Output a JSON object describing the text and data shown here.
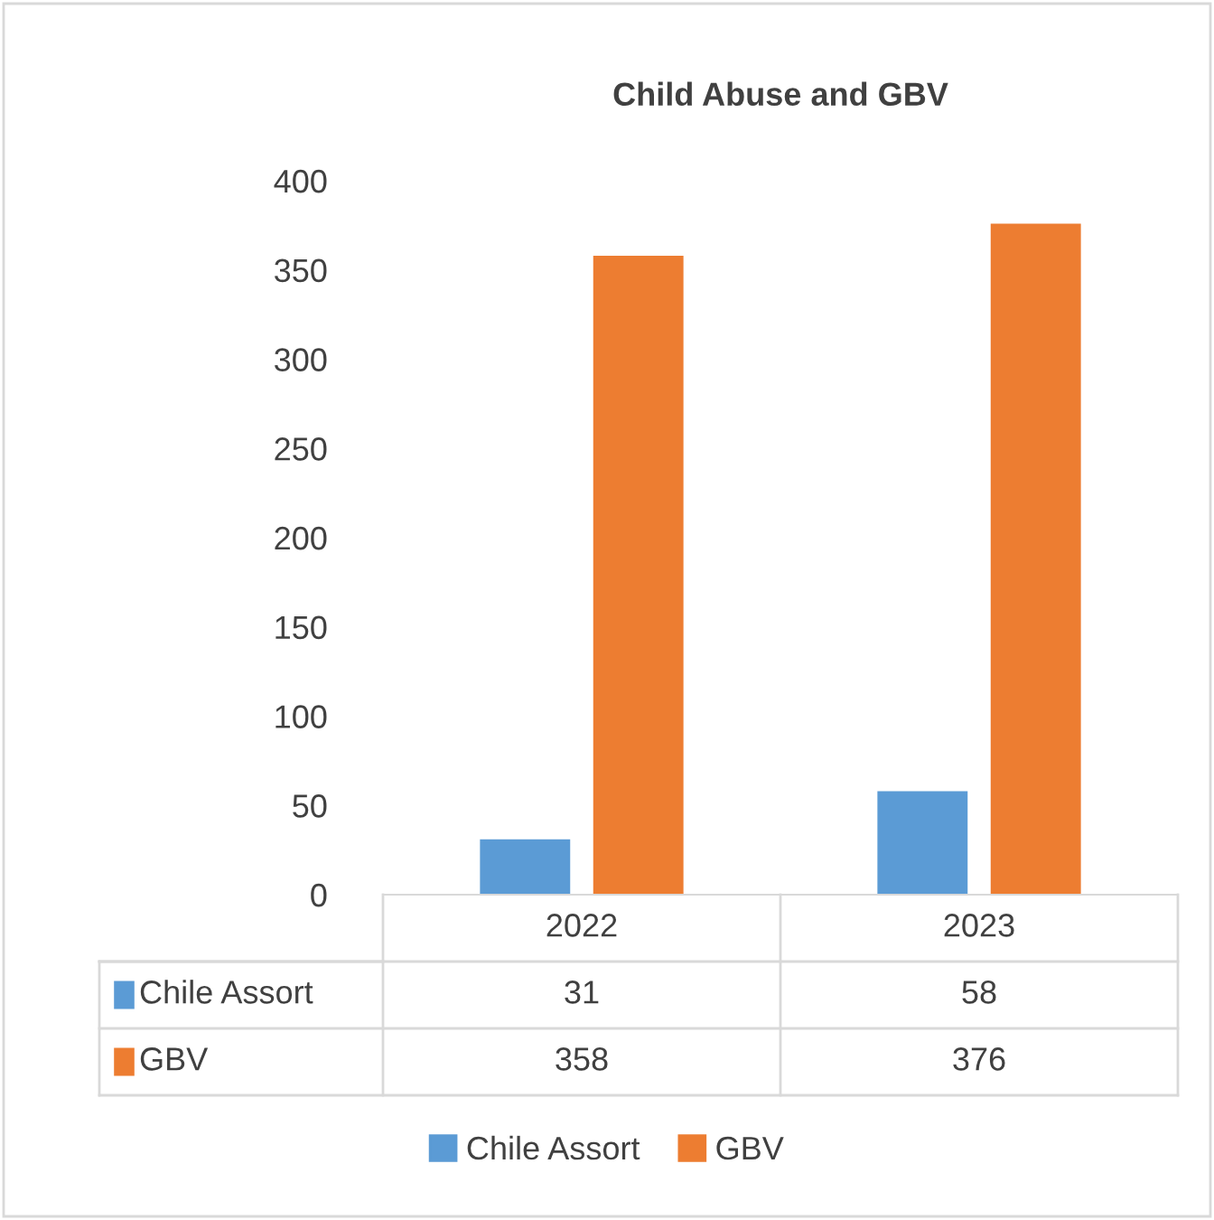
{
  "chart_data": {
    "type": "bar",
    "title": "Child Abuse and GBV",
    "categories": [
      "2022",
      "2023"
    ],
    "series": [
      {
        "name": "Chile Assort",
        "color": "#5b9bd5",
        "values": [
          31,
          58
        ]
      },
      {
        "name": "GBV",
        "color": "#ed7d31",
        "values": [
          358,
          376
        ]
      }
    ],
    "ylim": [
      0,
      400
    ],
    "yticks": [
      0,
      50,
      100,
      150,
      200,
      250,
      300,
      350,
      400
    ],
    "grid": false,
    "legend": "bottom",
    "data_labels": true
  }
}
